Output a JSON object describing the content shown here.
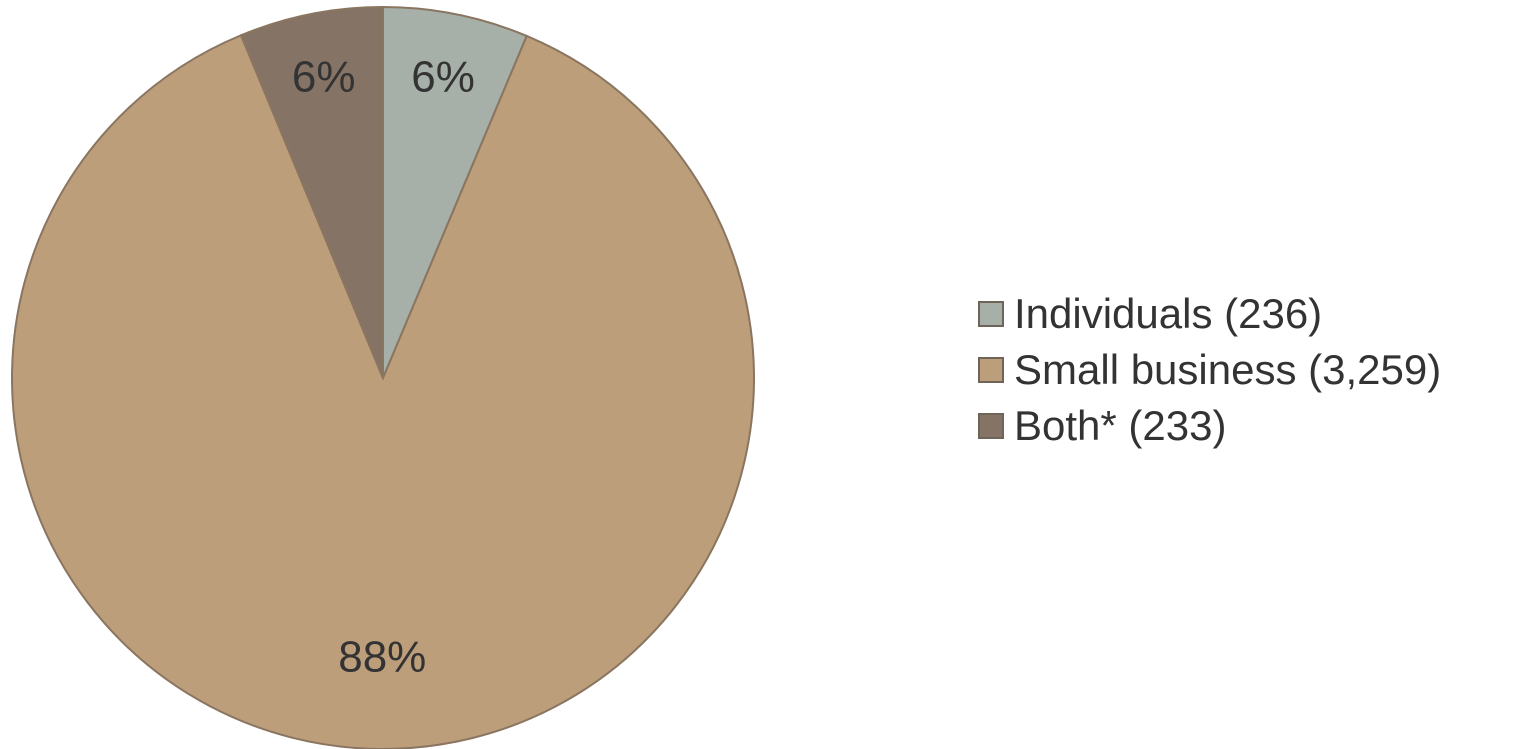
{
  "chart_data": {
    "type": "pie",
    "title": "",
    "slices": [
      {
        "label": "Individuals (236)",
        "value": 236,
        "percent_label": "6%",
        "color": "#a6b0a8"
      },
      {
        "label": "Small business (3,259)",
        "value": 3259,
        "percent_label": "88%",
        "color": "#bd9e7b"
      },
      {
        "label": "Both* (233)",
        "value": 233,
        "percent_label": "6%",
        "color": "#857366"
      }
    ],
    "start": "12 o'clock",
    "direction": "clockwise",
    "legend_position": "right"
  },
  "colors": {
    "outline": "#8a7560"
  }
}
